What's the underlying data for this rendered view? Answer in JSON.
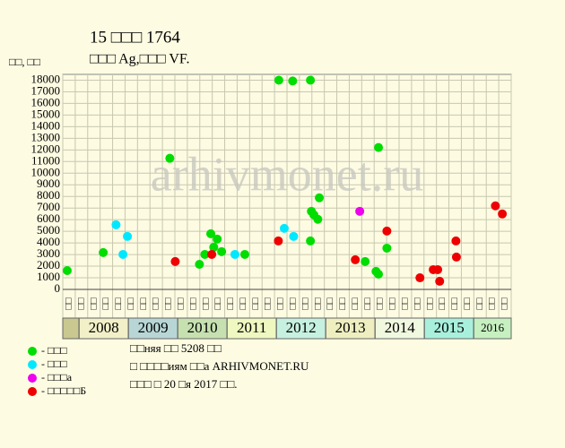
{
  "chart_data": {
    "type": "scatter",
    "title": "15 □□□ 1764",
    "subtitle": "□□□ Ag,□□□ VF.",
    "y_label": "□□, □□",
    "watermark": "arhivmonet.ru",
    "xlim": [
      2007.67,
      2016.76
    ],
    "xticks": [
      2008,
      2009,
      2010,
      2011,
      2012,
      2013,
      2014,
      2015,
      2016
    ],
    "band_colors": [
      "#c8c890",
      "#f2f0c8",
      "#b8d6d6",
      "#c6e0b0",
      "#eef8c0",
      "#c6f0e0",
      "#eeeec0",
      "#f0f8e0",
      "#a8f0dc",
      "#c6f0c0"
    ],
    "column_labels": [
      "□□",
      "□□",
      "□□",
      "□□",
      "□□",
      "□□",
      "□□",
      "□□",
      "□□",
      "□□",
      "□□",
      "□□",
      "□□",
      "□□",
      "□□",
      "□□",
      "□□",
      "□□",
      "□□",
      "□□",
      "□□",
      "□□",
      "□□",
      "□□",
      "□□",
      "□□",
      "□□",
      "□□",
      "□□",
      "□□",
      "□□",
      "□□",
      "□□",
      "□□",
      "□□",
      "□□"
    ],
    "ylim": [
      0,
      18500
    ],
    "yticks": [
      0,
      1000,
      2000,
      3000,
      4000,
      5000,
      6000,
      7000,
      8000,
      9000,
      10000,
      11000,
      12000,
      13000,
      14000,
      15000,
      16000,
      17000,
      18000
    ],
    "grid": true,
    "series": [
      {
        "name": "- □□□",
        "color": "#00dd00",
        "x": [
          2007.76,
          2008.49,
          2009.84,
          2010.44,
          2010.55,
          2010.67,
          2010.73,
          2010.8,
          2010.89,
          2011.36,
          2012.05,
          2012.33,
          2012.69,
          2012.69,
          2012.71,
          2012.76,
          2012.84,
          2012.87,
          2013.8,
          2014.02,
          2014.07,
          2014.07,
          2014.24
        ],
        "values": [
          1620,
          3170,
          11280,
          2160,
          3010,
          4790,
          3630,
          4330,
          3250,
          3010,
          18000,
          17930,
          18000,
          4170,
          6720,
          6410,
          6030,
          7880,
          2400,
          1550,
          1310,
          12210,
          3550
        ]
      },
      {
        "name": "- □□□",
        "color": "#00e8ff",
        "x": [
          2008.75,
          2008.89,
          2008.98,
          2011.16,
          2012.16,
          2012.35
        ],
        "values": [
          5560,
          3010,
          4560,
          3010,
          5250,
          4560
        ]
      },
      {
        "name": "- □□□а",
        "color": "#ee00ee",
        "x": [
          2013.69
        ],
        "values": [
          6720
        ]
      },
      {
        "name": "- □□□□□Б",
        "color": "#ee0000",
        "x": [
          2009.95,
          2010.69,
          2012.04,
          2013.6,
          2014.24,
          2014.91,
          2015.18,
          2015.27,
          2015.31,
          2015.64,
          2015.65,
          2016.44,
          2016.58
        ],
        "values": [
          2400,
          3010,
          4170,
          2550,
          5020,
          1000,
          1700,
          1700,
          700,
          4170,
          2780,
          7190,
          6490
        ]
      }
    ],
    "notes": [
      "□□няя □□ 5208 □□",
      "□ □□□□иям □□а ARHIVMONET.RU",
      "□□□ □ 20 □я 2017 □□."
    ]
  }
}
